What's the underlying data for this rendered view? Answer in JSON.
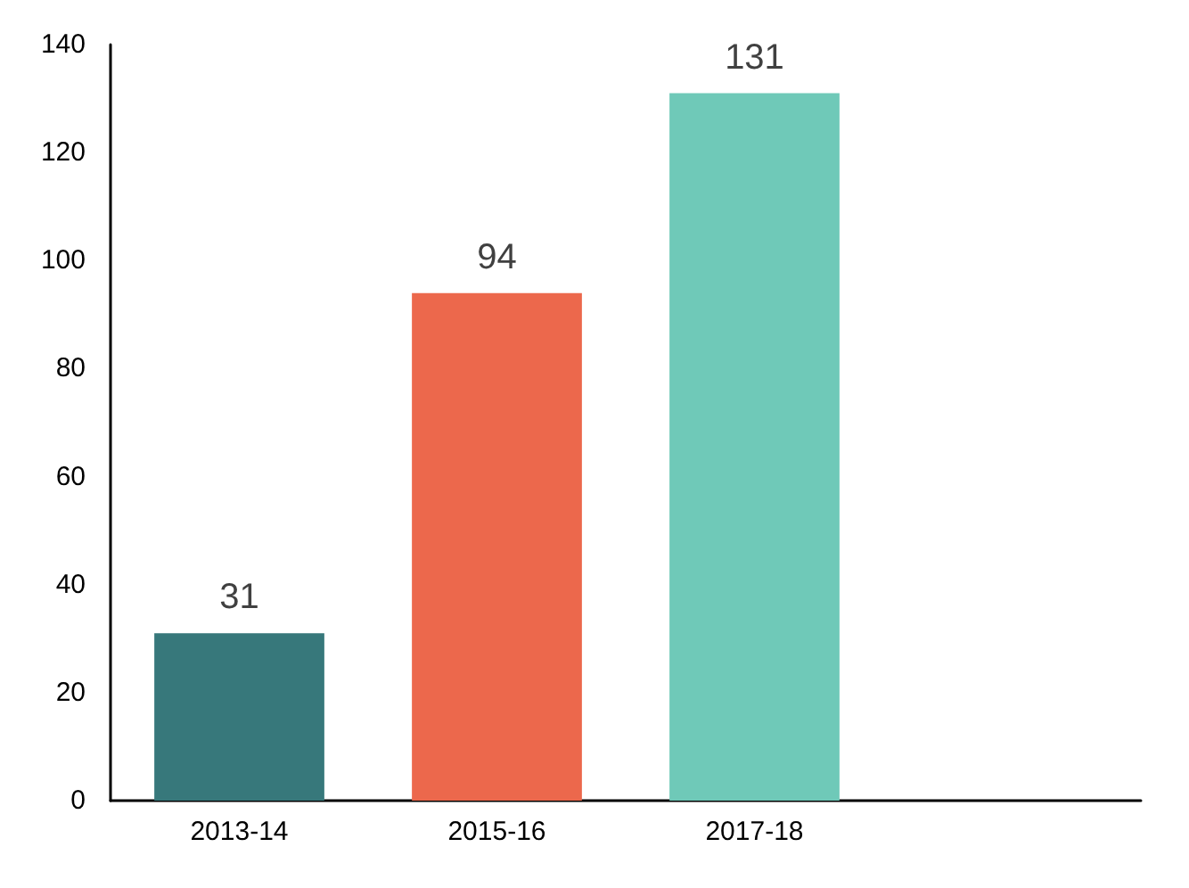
{
  "chart_data": {
    "type": "bar",
    "categories": [
      "2013-14",
      "2015-16",
      "2017-18",
      null
    ],
    "values": [
      31,
      94,
      131,
      null
    ],
    "colors": [
      "#37787b",
      "#ec684c",
      "#6fc9b8",
      null
    ],
    "ylim": [
      0,
      140
    ],
    "yticks": [
      0,
      20,
      40,
      60,
      80,
      100,
      120,
      140
    ],
    "data_labels": true,
    "grid": false
  }
}
